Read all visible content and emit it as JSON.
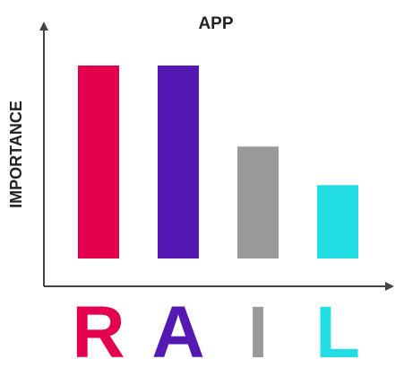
{
  "chart_data": {
    "type": "bar",
    "title": "APP",
    "ylabel": "IMPORTANCE",
    "xlabel": "",
    "categories": [
      "R",
      "A",
      "I",
      "L"
    ],
    "values": [
      100,
      100,
      58,
      38
    ],
    "ylim": [
      0,
      100
    ],
    "grid": false,
    "legend": "none",
    "colors": [
      "#e5004f",
      "#5419b3",
      "#9a9a9a",
      "#23dde4"
    ]
  }
}
